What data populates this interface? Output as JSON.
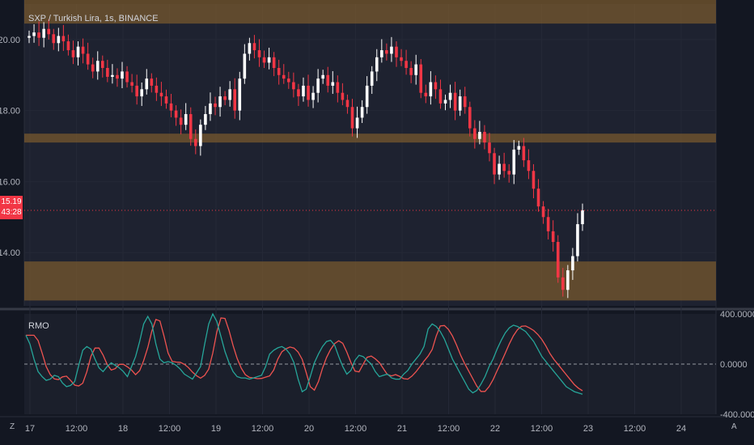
{
  "symbol_title": "SXP / Turkish Lira, 1s, BINANCE",
  "price_axis": [
    "20.00",
    "18.00",
    "16.00",
    "14.00"
  ],
  "price_tag": {
    "price": "15.19",
    "countdown": "43:28"
  },
  "indicator_title": "RMO",
  "indicator_axis": [
    "400.0000",
    "0.0000",
    "-400.0000"
  ],
  "time_axis": [
    "17",
    "12:00",
    "18",
    "12:00",
    "19",
    "12:00",
    "20",
    "12:00",
    "21",
    "12:00",
    "22",
    "12:00",
    "23",
    "12:00",
    "24"
  ],
  "corner_left": "Z",
  "corner_right": "A",
  "colors": {
    "background": "#131722",
    "up": "#ffffff",
    "down": "#f23645",
    "zone": "#7a5a2e",
    "rmo_fast": "#26a69a",
    "rmo_slow": "#ef5350"
  },
  "chart_data": {
    "type": "candlestick",
    "price_range": [
      12.5,
      21.0
    ],
    "support_resistance_zones": [
      [
        20.45,
        21.25
      ],
      [
        17.1,
        17.35
      ],
      [
        12.65,
        13.75
      ]
    ],
    "closes": [
      20.1,
      20.2,
      20.05,
      20.3,
      20.15,
      19.9,
      20.1,
      19.95,
      19.7,
      19.5,
      19.8,
      19.6,
      19.3,
      19.1,
      19.4,
      19.2,
      18.95,
      19.0,
      18.9,
      19.1,
      18.8,
      18.7,
      18.4,
      18.6,
      18.9,
      18.7,
      18.5,
      18.4,
      18.2,
      18.0,
      17.8,
      17.6,
      17.9,
      17.2,
      17.0,
      17.6,
      17.9,
      18.2,
      18.1,
      18.4,
      18.3,
      18.6,
      18.0,
      18.9,
      19.6,
      19.9,
      19.7,
      19.5,
      19.35,
      19.5,
      19.2,
      19.0,
      18.9,
      18.8,
      18.6,
      18.4,
      18.7,
      18.3,
      18.5,
      18.9,
      19.0,
      18.7,
      18.8,
      18.5,
      18.3,
      18.1,
      17.5,
      17.8,
      18.1,
      18.7,
      19.1,
      19.5,
      19.7,
      19.6,
      19.8,
      19.5,
      19.4,
      19.2,
      19.0,
      19.3,
      18.5,
      18.4,
      18.8,
      18.6,
      18.2,
      18.3,
      18.5,
      18.0,
      18.4,
      18.1,
      17.5,
      17.2,
      17.4,
      17.1,
      16.8,
      16.2,
      16.5,
      16.3,
      16.2,
      16.9,
      17.0,
      16.6,
      16.3,
      15.8,
      15.3,
      15.0,
      14.6,
      14.3,
      13.3,
      12.95,
      13.5,
      13.9,
      14.8,
      15.19
    ]
  },
  "indicator_data": {
    "range": [
      -400,
      400
    ],
    "fast": [
      230,
      160,
      40,
      -60,
      -100,
      -130,
      -120,
      -90,
      -100,
      -150,
      -180,
      -170,
      -140,
      -10,
      110,
      140,
      120,
      40,
      -30,
      -60,
      -20,
      10,
      -10,
      -30,
      -60,
      -100,
      -20,
      60,
      180,
      320,
      380,
      320,
      160,
      40,
      10,
      20,
      10,
      -10,
      -40,
      -80,
      -100,
      -120,
      -70,
      -20,
      160,
      320,
      400,
      340,
      220,
      100,
      10,
      -60,
      -100,
      -110,
      -110,
      -120,
      -110,
      -100,
      -90,
      -20,
      80,
      110,
      130,
      140,
      120,
      80,
      10,
      -120,
      -220,
      -200,
      -100,
      10,
      80,
      140,
      180,
      190,
      150,
      60,
      -20,
      -80,
      -50,
      30,
      70,
      60,
      30,
      0,
      -60,
      -100,
      -90,
      -80,
      -110,
      -120,
      -120,
      -80,
      -50,
      0,
      40,
      80,
      140,
      280,
      320,
      300,
      260,
      200,
      120,
      40,
      -20,
      -80,
      -140,
      -200,
      -230,
      -210,
      -160,
      -100,
      -20,
      40,
      120,
      190,
      250,
      290,
      310,
      300,
      280,
      260,
      220,
      180,
      120,
      60,
      20,
      -20,
      -60,
      -100,
      -140,
      -180,
      -200,
      -220,
      -230,
      -240
    ]
  }
}
